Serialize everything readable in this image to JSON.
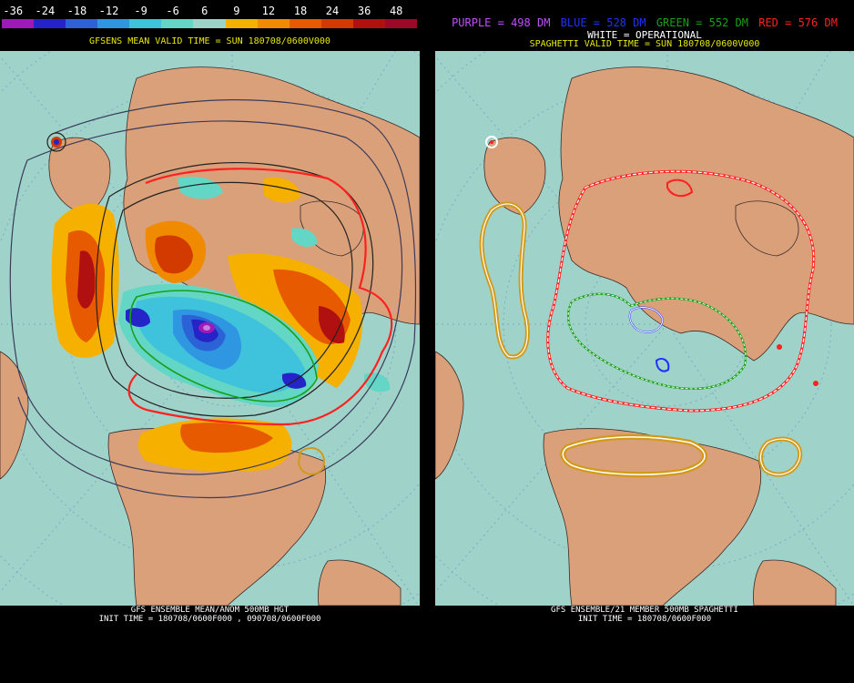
{
  "left": {
    "colorbar": {
      "labels": [
        "-36",
        "-24",
        "-18",
        "-12",
        "-9",
        "-6",
        "6",
        "9",
        "12",
        "18",
        "24",
        "36",
        "48"
      ],
      "colors": [
        "#9e19b8",
        "#2424c8",
        "#2b63d6",
        "#2f96e2",
        "#3fc2dc",
        "#63d6c6",
        "#9fd3c9",
        "#f5b000",
        "#f08a00",
        "#e85a00",
        "#d23a00",
        "#b01010",
        "#9a0a28"
      ]
    },
    "title": "GFSENS MEAN VALID TIME = SUN 180708/0600V000",
    "footer_line1": "GFS ENSEMBLE MEAN/ANOM 500MB HGT",
    "footer_line2": "INIT TIME = 180708/0600F000 , 090708/0600F000"
  },
  "right": {
    "legend": {
      "purple": "PURPLE = 498 DM",
      "blue": "BLUE = 528 DM",
      "green": "GREEN = 552 DM",
      "red": "RED = 576 DM"
    },
    "operational": "WHITE = OPERATIONAL",
    "title": "SPAGHETTI VALID TIME = SUN 180708/0600V000",
    "footer_line1": "GFS ENSEMBLE/21 MEMBER 500MB SPAGHETTI",
    "footer_line2": "INIT TIME = 180708/0600F000"
  },
  "colors": {
    "ocean": "#9fd3c9",
    "land": "#d9a07a",
    "background": "#000000",
    "header_text": "#e8e800",
    "purple": "#c050ff",
    "blue": "#2030ff",
    "green": "#18a018",
    "red": "#ff2020",
    "gold": "#d39a1a",
    "white": "#ffffff"
  }
}
